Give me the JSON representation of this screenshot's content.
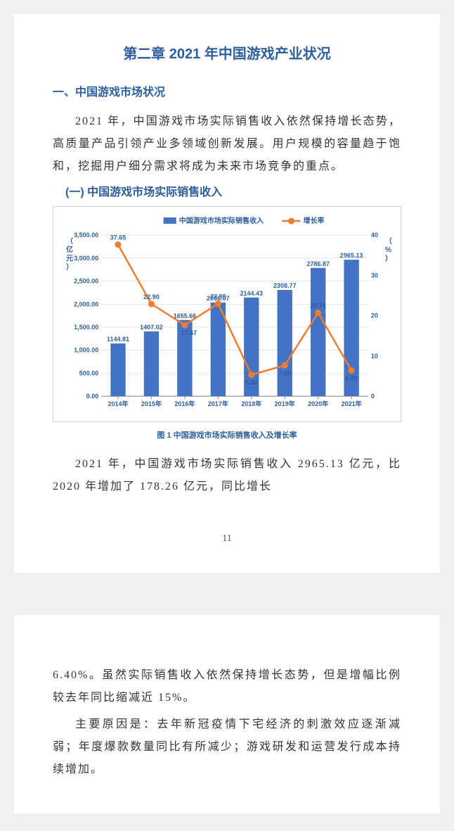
{
  "chapter": {
    "title": "第二章 2021 年中国游戏产业状况"
  },
  "section1": {
    "heading": "一、中国游戏市场状况",
    "para": "2021 年，中国游戏市场实际销售收入依然保持增长态势，高质量产品引领产业多领域创新发展。用户规模的容量趋于饱和，挖掘用户细分需求将成为未来市场竞争的重点。"
  },
  "subsection1": {
    "heading": "(一) 中国游戏市场实际销售收入"
  },
  "chart": {
    "type": "bar+line",
    "legend_bar": "中国游戏市场实际销售收入",
    "legend_line": "增长率",
    "y1_label": "（亿元）",
    "y2_label": "（%）",
    "categories": [
      "2014年",
      "2015年",
      "2016年",
      "2017年",
      "2018年",
      "2019年",
      "2020年",
      "2021年"
    ],
    "bar_values": [
      1144.81,
      1407.02,
      1655.66,
      2036.07,
      2144.43,
      2308.77,
      2786.87,
      2965.13
    ],
    "line_values": [
      37.65,
      22.9,
      17.67,
      22.98,
      5.32,
      7.66,
      20.71,
      6.4
    ],
    "bar_color": "#4472c4",
    "line_color": "#ed7d31",
    "marker_color": "#ed7d31",
    "grid_color": "#d2d2d2",
    "axis_color": "#808080",
    "text_color": "#2e5e9e",
    "background_color": "#ffffff",
    "y1_lim": [
      0,
      3500
    ],
    "y1_ticks": [
      0,
      500,
      1000,
      1500,
      2000,
      2500,
      3000,
      3500
    ],
    "y1_tick_labels": [
      "0.00",
      "500.00",
      "1,000.00",
      "1,500.00",
      "2,000.00",
      "2,500.00",
      "3,000.00",
      "3,500.00"
    ],
    "y2_lim": [
      0,
      40
    ],
    "y2_ticks": [
      0,
      10,
      20,
      30,
      40
    ],
    "bar_width": 0.45,
    "line_width": 2.5,
    "marker_size": 4.5,
    "font_size_axis": 9,
    "font_size_datalabel": 9,
    "font_size_legend": 10,
    "caption": "图 1 中国游戏市场实际销售收入及增长率"
  },
  "para_after_chart": "2021 年，中国游戏市场实际销售收入 2965.13 亿元，比 2020 年增加了 178.26 亿元，同比增长",
  "page_number_1": "11",
  "page2": {
    "para1": "6.40%。虽然实际销售收入依然保持增长态势，但是增幅比例较去年同比缩减近 15%。",
    "para2": "主要原因是：去年新冠疫情下宅经济的刺激效应逐渐减弱；年度爆款数量同比有所减少；游戏研发和运营发行成本持续增加。"
  }
}
